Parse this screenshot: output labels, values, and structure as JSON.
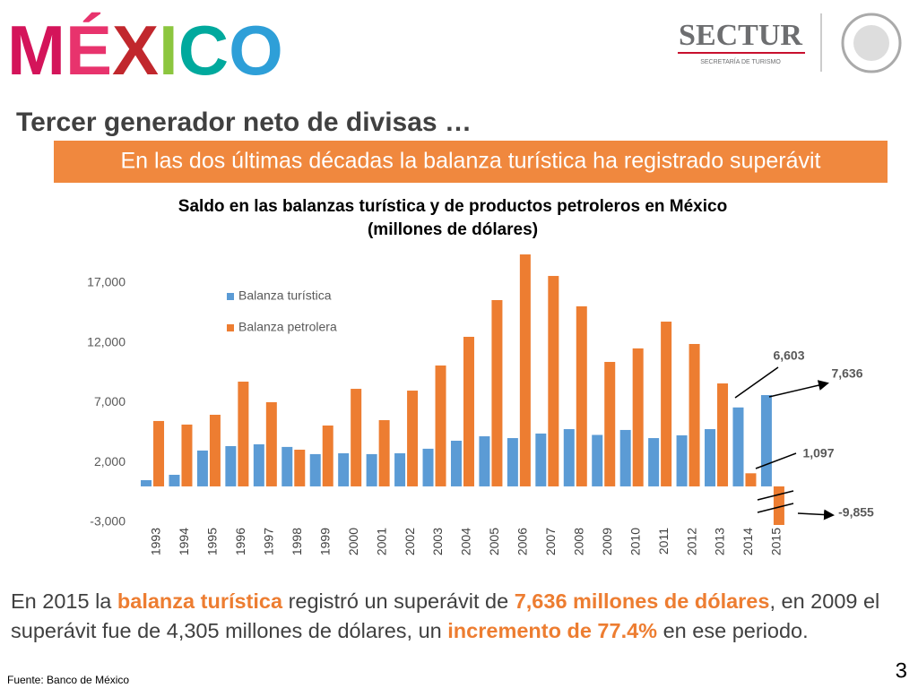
{
  "logo": "MÉXICO",
  "agency": {
    "name": "SECTUR",
    "subtitle": "SECRETARÍA DE TURISMO"
  },
  "heading": "Tercer generador neto de divisas …",
  "banner": "En las dos últimas décadas la balanza turística ha registrado superávit",
  "chart_data": {
    "type": "bar",
    "title": [
      "Saldo en las balanzas turística y de productos petroleros en México",
      "(millones de dólares)"
    ],
    "categories": [
      "1993",
      "1994",
      "1995",
      "1996",
      "1997",
      "1998",
      "1999",
      "2000",
      "2001",
      "2002",
      "2003",
      "2004",
      "2005",
      "2006",
      "2007",
      "2008",
      "2009",
      "2010",
      "2011",
      "2012",
      "2013",
      "2014",
      "2015"
    ],
    "series": [
      {
        "name": "Balanza turística",
        "color": "#5b9bd5",
        "values": [
          520,
          970,
          3000,
          3370,
          3520,
          3300,
          2700,
          2770,
          2700,
          2770,
          3150,
          3820,
          4190,
          4040,
          4420,
          4790,
          4305,
          4720,
          4040,
          4270,
          4790,
          6603,
          7636
        ],
        "value_labels": [
          null,
          null,
          null,
          null,
          null,
          null,
          null,
          null,
          null,
          null,
          null,
          null,
          null,
          null,
          null,
          null,
          null,
          null,
          null,
          null,
          null,
          "6,603",
          "7,636"
        ]
      },
      {
        "name": "Balanza petrolera",
        "color": "#ed7d31",
        "values": [
          5470,
          5170,
          5990,
          8760,
          7040,
          3070,
          5090,
          8160,
          5540,
          8010,
          10110,
          12510,
          15580,
          19400,
          17600,
          15060,
          10410,
          11540,
          13780,
          11910,
          8610,
          1097,
          -9855
        ],
        "value_labels": [
          null,
          null,
          null,
          null,
          null,
          null,
          null,
          null,
          null,
          null,
          null,
          null,
          null,
          null,
          null,
          null,
          null,
          null,
          null,
          null,
          null,
          "1,097",
          "-9,855"
        ]
      }
    ],
    "ylim": [
      -3000,
      20000
    ],
    "yticks": [
      {
        "value": -3000,
        "label": "-3,000"
      },
      {
        "value": 2000,
        "label": "2,000"
      },
      {
        "value": 7000,
        "label": "7,000"
      },
      {
        "value": 12000,
        "label": "12,000"
      },
      {
        "value": 17000,
        "label": "17,000"
      }
    ],
    "grid": false,
    "legend": "top-left"
  },
  "summary": [
    {
      "text": "En 2015 la ",
      "highlight": false
    },
    {
      "text": "balanza turística",
      "highlight": true
    },
    {
      "text": " registró un superávit de ",
      "highlight": false
    },
    {
      "text": "7,636 millones de dólares",
      "highlight": true
    },
    {
      "text": ", en 2009 el superávit fue de 4,305 millones de dólares, un ",
      "highlight": false
    },
    {
      "text": "incremento de 77.4%",
      "highlight": true
    },
    {
      "text": " en ese periodo.",
      "highlight": false
    }
  ],
  "source": "Fuente: Banco de México",
  "page_number": "3"
}
